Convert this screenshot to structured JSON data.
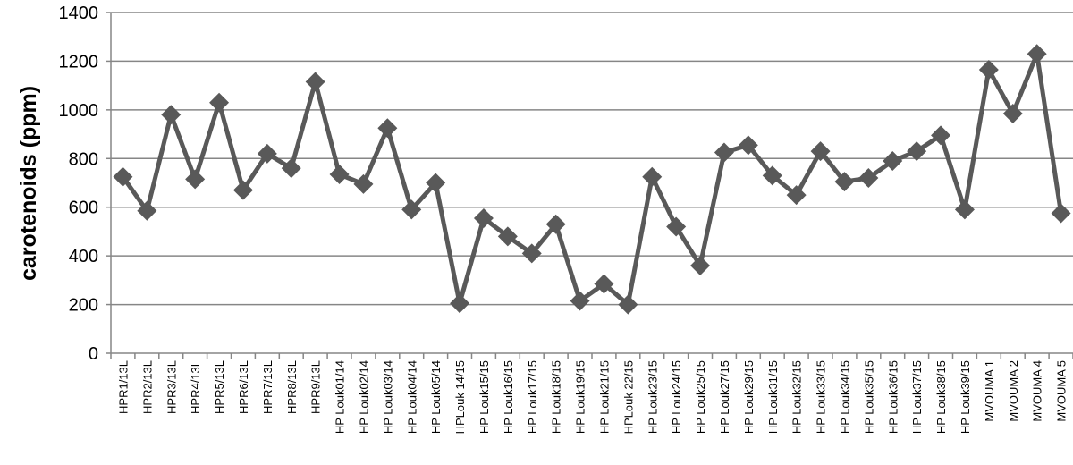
{
  "chart_data": {
    "type": "line",
    "ylabel": "carotenoids (ppm)",
    "xlabel": "",
    "title": "",
    "ylim": [
      0,
      1400
    ],
    "yticks": [
      0,
      200,
      400,
      600,
      800,
      1000,
      1200,
      1400
    ],
    "grid": true,
    "legend": false,
    "marker": "diamond",
    "categories": [
      "HPR1/13L",
      "HPR2/13L",
      "HPR3/13L",
      "HPR4/13L",
      "HPR5/13L",
      "HPR6/13L",
      "HPR7/13L",
      "HPR8/13L",
      "HPR9/13L",
      "HP Louk01/14",
      "HP Louk02/14",
      "HP Louk03/14",
      "HP Louk04/14",
      "HP Louk05/14",
      "HPLouk 14/15",
      "HP Louk15/15",
      "HP Louk16/15",
      "HP Louk17/15",
      "HP Louk18/15",
      "HP Louk19/15",
      "HP Louk21/15",
      "HPLouk 22/15",
      "HP Louk23/15",
      "HP Louk24/15",
      "HP Louk25/15",
      "HP Louk27/15",
      "HP Louk29/15",
      "HP Louk31/15",
      "HP Louk32/15",
      "HP Louk33/15",
      "HP Louk34/15",
      "HP Louk35/15",
      "HP Louk36/15",
      "HP Louk37/15",
      "HP Louk38/15",
      "HP Louk39/15",
      "MVOUMA 1",
      "MVOUMA 2",
      "MVOUMA 4",
      "MVOUMA 5"
    ],
    "series": [
      {
        "values": [
          725,
          585,
          980,
          715,
          1030,
          670,
          820,
          760,
          1115,
          735,
          695,
          925,
          590,
          700,
          205,
          555,
          480,
          410,
          530,
          215,
          285,
          200,
          725,
          520,
          360,
          825,
          855,
          730,
          650,
          830,
          705,
          720,
          790,
          830,
          895,
          590,
          1165,
          985,
          1230,
          575
        ]
      }
    ],
    "colors": {
      "line": "#595959",
      "grid": "#868686",
      "axis": "#868686"
    }
  }
}
